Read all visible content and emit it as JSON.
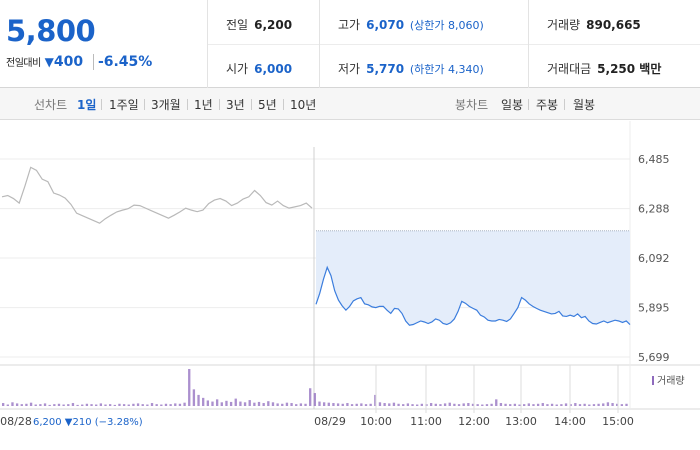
{
  "quote": {
    "price": "5,800",
    "change_label": "전일대비",
    "change_arrow": "▼",
    "change_value": "400",
    "change_pct": "-6.45%",
    "prev_close_label": "전일",
    "prev_close": "6,200",
    "open_label": "시가",
    "open": "6,000",
    "high_label": "고가",
    "high": "6,070",
    "upper_limit": "(상한가 8,060)",
    "low_label": "저가",
    "low": "5,770",
    "lower_limit": "(하한가 4,340)",
    "volume_label": "거래량",
    "volume": "890,665",
    "amount_label": "거래대금",
    "amount": "5,250 백만"
  },
  "tabs": {
    "line_label": "선차트",
    "line": [
      "1일",
      "1주일",
      "3개월",
      "1년",
      "3년",
      "5년",
      "10년"
    ],
    "line_selected": "1일",
    "candle_label": "봉차트",
    "candle": [
      "일봉",
      "주봉",
      "월봉"
    ]
  },
  "colors": {
    "up": "#d0112b",
    "down": "#1b63c9",
    "today_line": "#3b7ddd",
    "today_fill": "#e4edfa",
    "prev_line": "#b9b9b9",
    "volume_bar": "#8f6bbd"
  },
  "chart_data": {
    "type": "line",
    "y_ticks": [
      "6,485",
      "6,288",
      "6,092",
      "5,895",
      "5,699"
    ],
    "y_tick_values": [
      6485,
      6288,
      6092,
      5895,
      5699
    ],
    "ylim": [
      5699,
      6485
    ],
    "reference_level": 6200,
    "x_ticks": [
      "08/28",
      "08/29",
      "10:00",
      "11:00",
      "12:00",
      "13:00",
      "14:00",
      "15:00"
    ],
    "prev_day_note": {
      "date": "08/28",
      "close": "6,200",
      "arrow": "▼",
      "change": "210",
      "pct": "(−3.28%)"
    },
    "volume_legend": "거래량",
    "series": [
      {
        "x_start": "08/28 09:00",
        "x_end": "08/28 15:30",
        "values": [
          6335,
          6340,
          6328,
          6310,
          6378,
          6452,
          6440,
          6405,
          6395,
          6350,
          6342,
          6330,
          6305,
          6270,
          6260,
          6250,
          6240,
          6230,
          6248,
          6262,
          6275,
          6282,
          6288,
          6302,
          6300,
          6290,
          6280,
          6270,
          6260,
          6250,
          6262,
          6275,
          6290,
          6282,
          6276,
          6282,
          6308,
          6322,
          6328,
          6318,
          6300,
          6310,
          6326,
          6335,
          6360,
          6340,
          6312,
          6302,
          6318,
          6300,
          6290,
          6295,
          6300,
          6310,
          6290
        ]
      },
      {
        "x_start": "08/29 09:00",
        "x_end": "08/29 15:30",
        "values": [
          5908,
          5952,
          6008,
          6055,
          6022,
          5962,
          5925,
          5902,
          5885,
          5900,
          5922,
          5930,
          5935,
          5910,
          5906,
          5898,
          5895,
          5900,
          5900,
          5885,
          5872,
          5892,
          5890,
          5872,
          5842,
          5825,
          5828,
          5835,
          5842,
          5838,
          5832,
          5838,
          5850,
          5845,
          5832,
          5828,
          5835,
          5850,
          5880,
          5920,
          5912,
          5900,
          5892,
          5885,
          5865,
          5858,
          5845,
          5842,
          5842,
          5848,
          5845,
          5840,
          5850,
          5872,
          5895,
          5935,
          5925,
          5910,
          5900,
          5892,
          5885,
          5880,
          5875,
          5870,
          5872,
          5880,
          5862,
          5860,
          5865,
          5860,
          5870,
          5855,
          5860,
          5842,
          5832,
          5830,
          5836,
          5842,
          5835,
          5840,
          5845,
          5842,
          5836,
          5842,
          5828
        ],
        "x_ticks_values": [
          "09:00",
          "10:00",
          "11:00",
          "12:00",
          "13:00",
          "14:00",
          "15:00"
        ]
      }
    ],
    "volume": [
      0.08,
      0.04,
      0.1,
      0.07,
      0.05,
      0.06,
      0.09,
      0.04,
      0.05,
      0.07,
      0.03,
      0.05,
      0.06,
      0.04,
      0.05,
      0.08,
      0.03,
      0.04,
      0.06,
      0.05,
      0.04,
      0.07,
      0.04,
      0.05,
      0.03,
      0.06,
      0.05,
      0.04,
      0.06,
      0.07,
      0.05,
      0.04,
      0.08,
      0.05,
      0.04,
      0.06,
      0.05,
      0.07,
      0.06,
      0.09,
      1.0,
      0.45,
      0.3,
      0.22,
      0.15,
      0.12,
      0.18,
      0.1,
      0.14,
      0.11,
      0.2,
      0.12,
      0.1,
      0.16,
      0.09,
      0.11,
      0.08,
      0.13,
      0.1,
      0.07,
      0.06,
      0.09,
      0.08,
      0.05,
      0.07,
      0.06,
      0.48,
      0.35,
      0.12,
      0.1,
      0.09,
      0.08,
      0.07,
      0.06,
      0.08,
      0.05,
      0.06,
      0.07,
      0.05,
      0.06,
      0.3,
      0.1,
      0.08,
      0.07,
      0.09,
      0.06,
      0.05,
      0.07,
      0.05,
      0.04,
      0.06,
      0.05,
      0.08,
      0.06,
      0.05,
      0.07,
      0.09,
      0.06,
      0.05,
      0.07,
      0.08,
      0.06,
      0.05,
      0.04,
      0.05,
      0.06,
      0.18,
      0.08,
      0.06,
      0.05,
      0.06,
      0.04,
      0.05,
      0.07,
      0.05,
      0.06,
      0.08,
      0.05,
      0.06,
      0.04,
      0.05,
      0.07,
      0.05,
      0.08,
      0.05,
      0.06,
      0.04,
      0.05,
      0.06,
      0.07,
      0.1,
      0.08,
      0.06,
      0.05,
      0.06
    ]
  }
}
